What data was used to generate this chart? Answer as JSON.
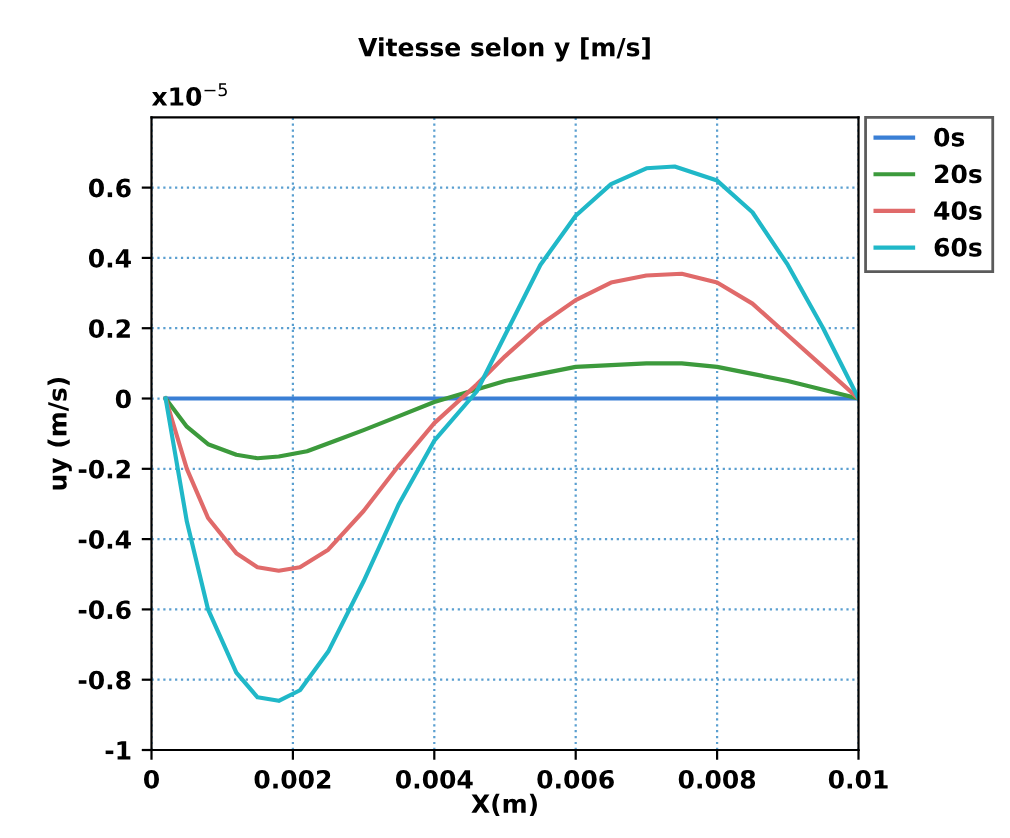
{
  "chart_data": {
    "type": "line",
    "title": "Vitesse selon y [m/s]",
    "xlabel": "X(m)",
    "ylabel": "uy (m/s)",
    "annotations": [
      "x10$^{−5}$"
    ],
    "xlim": [
      0,
      0.01
    ],
    "ylim": [
      -1,
      0.8
    ],
    "xticks": [
      0,
      0.002,
      0.004,
      0.006,
      0.008,
      0.01
    ],
    "yticks": [
      -1,
      -0.8,
      -0.6,
      -0.4,
      -0.2,
      0,
      0.2,
      0.4,
      0.6
    ],
    "grid": true,
    "legend": "top right",
    "line_style": "solid",
    "marker": "none",
    "series": [
      {
        "name": "0s",
        "color": "#3a7fd5",
        "x": [
          0.0002,
          0.01
        ],
        "values": [
          0,
          0
        ]
      },
      {
        "name": "20s",
        "color": "#3c9a3c",
        "x": [
          0.0002,
          0.0005,
          0.0008,
          0.0012,
          0.0015,
          0.0018,
          0.0022,
          0.0026,
          0.003,
          0.0035,
          0.004,
          0.0045,
          0.005,
          0.0055,
          0.006,
          0.007,
          0.0075,
          0.008,
          0.0085,
          0.009,
          0.0095,
          0.01
        ],
        "values": [
          0,
          -0.08,
          -0.13,
          -0.16,
          -0.17,
          -0.165,
          -0.15,
          -0.12,
          -0.09,
          -0.05,
          -0.01,
          0.02,
          0.05,
          0.07,
          0.09,
          0.1,
          0.1,
          0.09,
          0.07,
          0.05,
          0.025,
          0
        ]
      },
      {
        "name": "40s",
        "color": "#e06a6a",
        "x": [
          0.0002,
          0.0005,
          0.0008,
          0.0012,
          0.0015,
          0.0018,
          0.0021,
          0.0025,
          0.003,
          0.0035,
          0.004,
          0.0046,
          0.005,
          0.0055,
          0.006,
          0.0065,
          0.007,
          0.0075,
          0.008,
          0.0085,
          0.009,
          0.0095,
          0.01
        ],
        "values": [
          0,
          -0.2,
          -0.34,
          -0.44,
          -0.48,
          -0.49,
          -0.48,
          -0.43,
          -0.32,
          -0.19,
          -0.07,
          0.04,
          0.12,
          0.21,
          0.28,
          0.33,
          0.35,
          0.355,
          0.33,
          0.27,
          0.18,
          0.09,
          0
        ]
      },
      {
        "name": "60s",
        "color": "#20b8c8",
        "x": [
          0.0002,
          0.0005,
          0.0008,
          0.0012,
          0.0015,
          0.0018,
          0.0021,
          0.0025,
          0.003,
          0.0035,
          0.004,
          0.0046,
          0.005,
          0.0055,
          0.006,
          0.0065,
          0.007,
          0.0074,
          0.008,
          0.0085,
          0.009,
          0.0095,
          0.01
        ],
        "values": [
          0,
          -0.35,
          -0.6,
          -0.78,
          -0.85,
          -0.86,
          -0.83,
          -0.72,
          -0.52,
          -0.3,
          -0.12,
          0.02,
          0.18,
          0.38,
          0.52,
          0.61,
          0.655,
          0.66,
          0.62,
          0.53,
          0.38,
          0.2,
          0
        ]
      }
    ]
  }
}
